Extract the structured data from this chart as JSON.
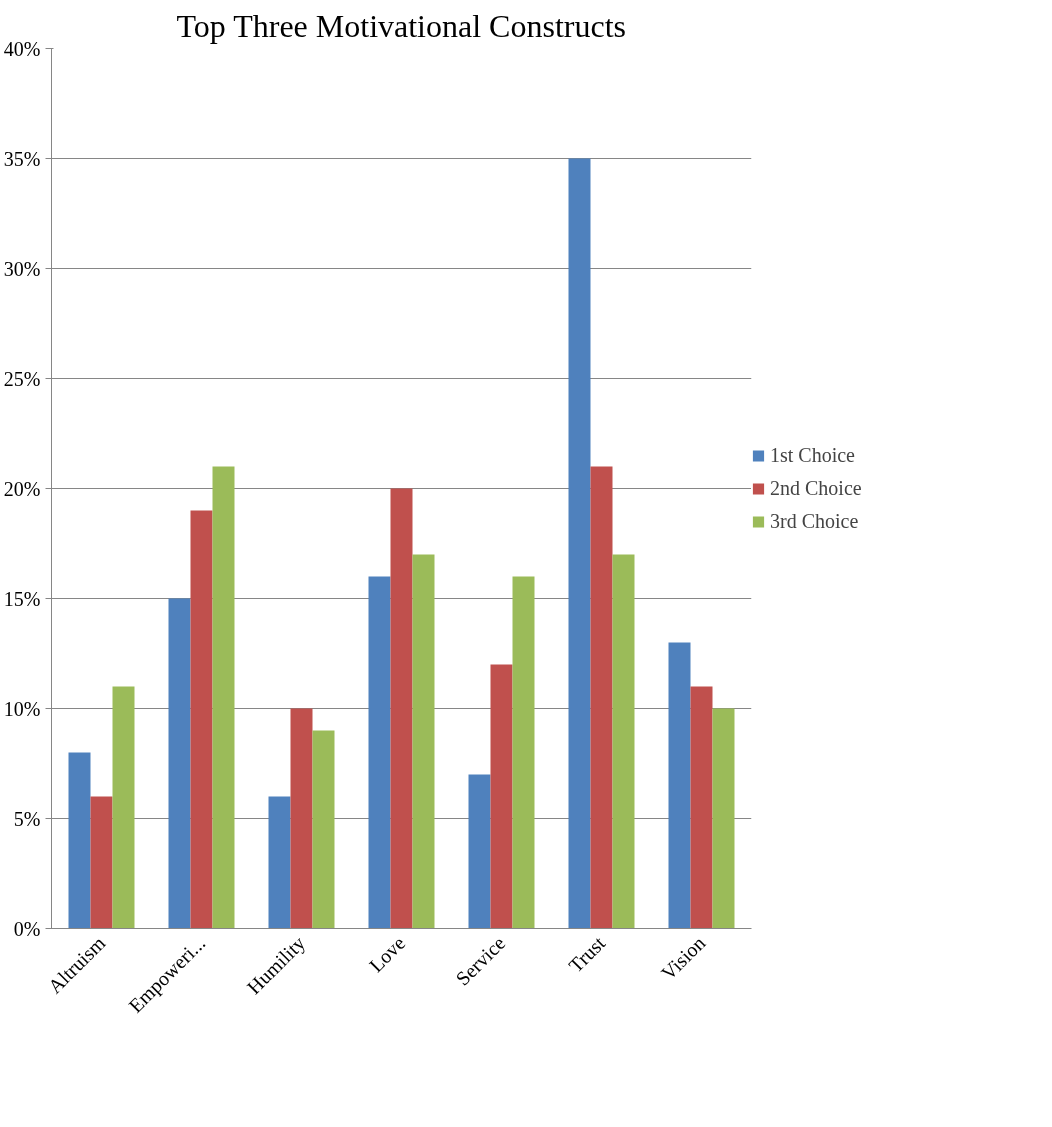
{
  "chart_data": {
    "type": "bar",
    "title": "Top Three Motivational Constructs",
    "categories": [
      "Altruism",
      "Empoweri...",
      "Humility",
      "Love",
      "Service",
      "Trust",
      "Vision"
    ],
    "series": [
      {
        "name": "1st Choice",
        "color": "#4f81bd",
        "values": [
          8,
          15,
          6,
          16,
          7,
          35,
          13
        ]
      },
      {
        "name": "2nd Choice",
        "color": "#c0504d",
        "values": [
          6,
          19,
          10,
          20,
          12,
          21,
          11
        ]
      },
      {
        "name": "3rd Choice",
        "color": "#9bbb59",
        "values": [
          11,
          21,
          9,
          17,
          16,
          17,
          10
        ]
      }
    ],
    "ylim": [
      0,
      40
    ],
    "yticks": [
      {
        "value": 0,
        "label": "0%"
      },
      {
        "value": 5,
        "label": "5%"
      },
      {
        "value": 10,
        "label": "10%"
      },
      {
        "value": 15,
        "label": "15%"
      },
      {
        "value": 20,
        "label": "20%"
      },
      {
        "value": 25,
        "label": "25%"
      },
      {
        "value": 30,
        "label": "30%"
      },
      {
        "value": 35,
        "label": "35%"
      },
      {
        "value": 40,
        "label": "40%"
      }
    ],
    "grid": "y",
    "legend": "right"
  }
}
